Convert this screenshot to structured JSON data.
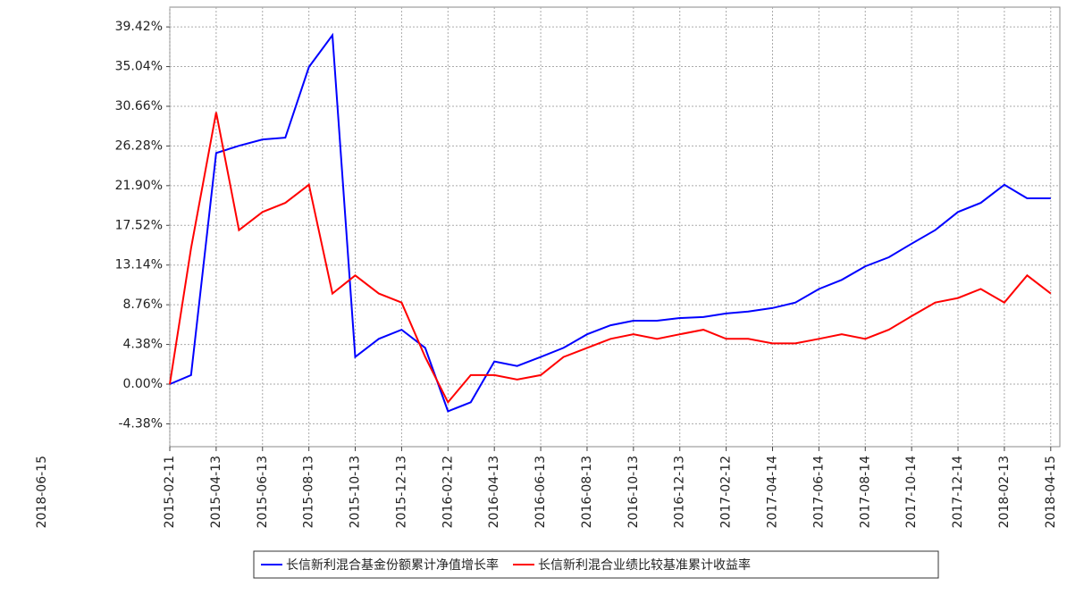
{
  "chart_data": {
    "type": "line",
    "x": [
      "2015-02-11",
      "2015-03-11",
      "2015-04-13",
      "2015-05-13",
      "2015-06-13",
      "2015-07-13",
      "2015-08-13",
      "2015-09-13",
      "2015-10-13",
      "2015-11-13",
      "2015-12-13",
      "2016-01-13",
      "2016-02-12",
      "2016-03-13",
      "2016-04-13",
      "2016-05-13",
      "2016-06-13",
      "2016-07-13",
      "2016-08-13",
      "2016-09-13",
      "2016-10-13",
      "2016-11-13",
      "2016-12-13",
      "2017-01-13",
      "2017-02-12",
      "2017-03-13",
      "2017-04-14",
      "2017-05-14",
      "2017-06-14",
      "2017-07-14",
      "2017-08-14",
      "2017-09-14",
      "2017-10-14",
      "2017-11-14",
      "2017-12-14",
      "2018-01-13",
      "2018-02-13",
      "2018-03-15",
      "2018-04-15"
    ],
    "series": [
      {
        "name": "长信新利混合基金份额累计净值增长率",
        "color": "#0000ff",
        "values": [
          0,
          1,
          25.5,
          26.3,
          27,
          27.2,
          35,
          38.5,
          3,
          5,
          6,
          4,
          -3,
          -2,
          2.5,
          2,
          3,
          4,
          5.5,
          6.5,
          7,
          7,
          7.3,
          7.4,
          7.8,
          8,
          8.4,
          9,
          10.5,
          11.5,
          13,
          14,
          15.5,
          17,
          19,
          20,
          22,
          20.5,
          20.5
        ]
      },
      {
        "name": "长信新利混合业绩比较基准累计收益率",
        "color": "#ff0000",
        "values": [
          0,
          15,
          30,
          17,
          19,
          20,
          22,
          10,
          12,
          10,
          9,
          3,
          -2,
          1,
          1,
          0.5,
          1,
          3,
          4,
          5,
          5.5,
          5,
          5.5,
          6,
          5,
          5,
          4.5,
          4.5,
          5,
          5.5,
          5,
          6,
          7.5,
          9,
          9.5,
          10.5,
          9,
          12,
          10
        ]
      }
    ],
    "xlim": [
      "2015-02-11",
      "2018-04-27"
    ],
    "xticks": [
      "2015-02-11",
      "2015-04-13",
      "2015-06-13",
      "2015-08-13",
      "2015-10-13",
      "2015-12-13",
      "2016-02-12",
      "2016-04-13",
      "2016-06-13",
      "2016-08-13",
      "2016-10-13",
      "2016-12-13",
      "2017-02-12",
      "2017-04-14",
      "2017-06-14",
      "2017-08-14",
      "2017-10-14",
      "2017-12-14",
      "2018-02-13",
      "2018-04-15"
    ],
    "ylim": [
      -6.9,
      41.6
    ],
    "yticks": [
      {
        "value": -4.38,
        "label": "-4.38%"
      },
      {
        "value": 0,
        "label": "0.00%"
      },
      {
        "value": 4.38,
        "label": "4.38%"
      },
      {
        "value": 8.76,
        "label": "8.76%"
      },
      {
        "value": 13.14,
        "label": "13.14%"
      },
      {
        "value": 17.52,
        "label": "17.52%"
      },
      {
        "value": 21.9,
        "label": "21.90%"
      },
      {
        "value": 26.28,
        "label": "26.28%"
      },
      {
        "value": 30.66,
        "label": "30.66%"
      },
      {
        "value": 35.04,
        "label": "35.04%"
      },
      {
        "value": 39.42,
        "label": "39.42%"
      }
    ],
    "grid": true,
    "stray_labels": [
      "2018-06-15"
    ]
  }
}
